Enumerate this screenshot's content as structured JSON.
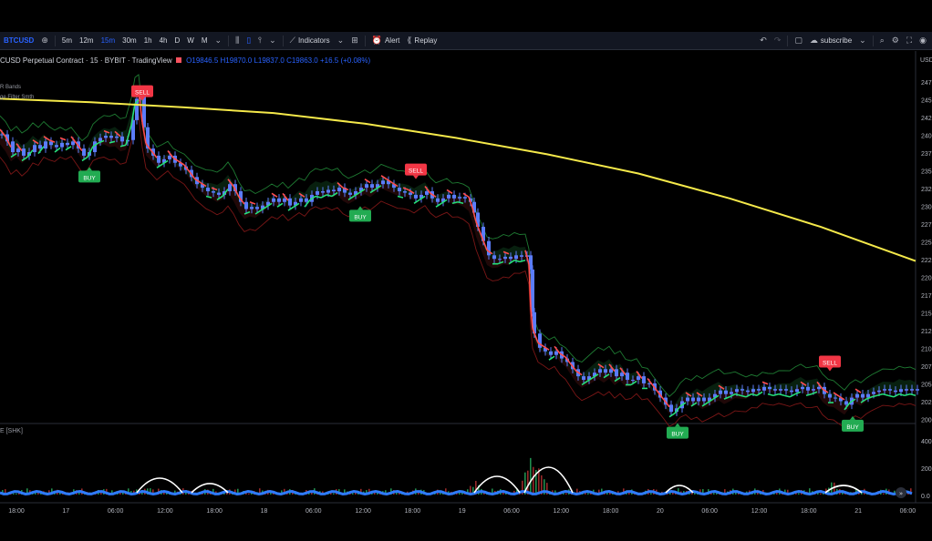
{
  "toolbar": {
    "symbol": "BTCUSD",
    "intervals": [
      "5m",
      "12m",
      "15m",
      "30m",
      "1h",
      "4h",
      "D",
      "W",
      "M"
    ],
    "active_interval": "15m",
    "indicators_label": "Indicators",
    "alert_label": "Alert",
    "replay_label": "Replay",
    "subscribe_label": "subscribe"
  },
  "legend": {
    "title": "CUSD Perpetual Contract · 15 · BYBIT · TradingView",
    "open": "O19846.5",
    "high": "H19870.0",
    "low": "L19837.0",
    "close": "C19863.0",
    "change": "+16.5 (+0.08%)"
  },
  "indicators": [
    "R Bands",
    "ge Filter Smth"
  ],
  "volume_label": "E [SHK]",
  "colors": {
    "yellow_line": "#f5e94a",
    "up_candle": "#5b7cfa",
    "trail_up": "#26e07a",
    "trail_down": "#ff4d4d",
    "band_up_fill": "#0e3a1c",
    "band_down_fill": "#3a0e0e",
    "vol_up": "#26a65b",
    "vol_down": "#b03030",
    "sell_badge": "#f23645",
    "buy_badge": "#22ab52"
  },
  "chart_data": {
    "type": "line",
    "title": "",
    "xlabel": "",
    "ylabel": "",
    "ylim": [
      20000,
      24800
    ],
    "x_tick_labels": [
      "18:00",
      "17",
      "06:00",
      "12:00",
      "18:00",
      "18",
      "06:00",
      "12:00",
      "18:00",
      "19",
      "06:00",
      "12:00",
      "18:00",
      "20",
      "06:00",
      "12:00",
      "18:00",
      "21",
      "06:00"
    ],
    "y_tick_labels": [
      "247",
      "245",
      "242",
      "240",
      "237",
      "235",
      "232",
      "230",
      "227",
      "225",
      "222",
      "220",
      "217",
      "215",
      "212",
      "210",
      "207",
      "205",
      "202",
      "200"
    ],
    "volume_tick_labels": [
      "400",
      "200",
      "0.0"
    ],
    "price_series": [
      [
        0,
        24000
      ],
      [
        6,
        23900
      ],
      [
        12,
        23750
      ],
      [
        18,
        23800
      ],
      [
        24,
        23700
      ],
      [
        30,
        23750
      ],
      [
        36,
        23850
      ],
      [
        42,
        23800
      ],
      [
        48,
        23900
      ],
      [
        54,
        23850
      ],
      [
        60,
        23820
      ],
      [
        66,
        23880
      ],
      [
        72,
        23850
      ],
      [
        78,
        23900
      ],
      [
        84,
        23800
      ],
      [
        90,
        23700
      ],
      [
        96,
        23750
      ],
      [
        102,
        23900
      ],
      [
        108,
        23950
      ],
      [
        114,
        23980
      ],
      [
        120,
        23950
      ],
      [
        126,
        23970
      ],
      [
        132,
        23900
      ],
      [
        138,
        23920
      ],
      [
        144,
        24200
      ],
      [
        148,
        24500
      ],
      [
        152,
        24550
      ],
      [
        156,
        24100
      ],
      [
        160,
        23800
      ],
      [
        166,
        23700
      ],
      [
        172,
        23600
      ],
      [
        178,
        23650
      ],
      [
        184,
        23700
      ],
      [
        190,
        23600
      ],
      [
        196,
        23550
      ],
      [
        202,
        23500
      ],
      [
        208,
        23400
      ],
      [
        214,
        23300
      ],
      [
        220,
        23250
      ],
      [
        226,
        23200
      ],
      [
        232,
        23180
      ],
      [
        238,
        23150
      ],
      [
        244,
        23200
      ],
      [
        250,
        23300
      ],
      [
        256,
        23200
      ],
      [
        262,
        23050
      ],
      [
        268,
        22950
      ],
      [
        274,
        22980
      ],
      [
        280,
        22950
      ],
      [
        286,
        23000
      ],
      [
        292,
        23050
      ],
      [
        298,
        23100
      ],
      [
        304,
        23050
      ],
      [
        310,
        23100
      ],
      [
        316,
        23000
      ],
      [
        322,
        23050
      ],
      [
        328,
        23100
      ],
      [
        334,
        23050
      ],
      [
        340,
        23150
      ],
      [
        346,
        23200
      ],
      [
        352,
        23180
      ],
      [
        358,
        23220
      ],
      [
        364,
        23200
      ],
      [
        370,
        23250
      ],
      [
        376,
        23180
      ],
      [
        382,
        23150
      ],
      [
        388,
        23200
      ],
      [
        394,
        23250
      ],
      [
        400,
        23300
      ],
      [
        406,
        23250
      ],
      [
        412,
        23300
      ],
      [
        418,
        23350
      ],
      [
        424,
        23300
      ],
      [
        430,
        23250
      ],
      [
        436,
        23200
      ],
      [
        442,
        23180
      ],
      [
        448,
        23150
      ],
      [
        454,
        23100
      ],
      [
        460,
        23150
      ],
      [
        466,
        23200
      ],
      [
        472,
        23100
      ],
      [
        478,
        23050
      ],
      [
        484,
        23100
      ],
      [
        490,
        23150
      ],
      [
        496,
        23100
      ],
      [
        502,
        23120
      ],
      [
        508,
        23100
      ],
      [
        514,
        23050
      ],
      [
        518,
        22900
      ],
      [
        522,
        22700
      ],
      [
        528,
        22500
      ],
      [
        534,
        22300
      ],
      [
        540,
        22250
      ],
      [
        546,
        22250
      ],
      [
        552,
        22280
      ],
      [
        558,
        22250
      ],
      [
        564,
        22300
      ],
      [
        570,
        22280
      ],
      [
        576,
        22300
      ],
      [
        580,
        22100
      ],
      [
        582,
        21500
      ],
      [
        584,
        21200
      ],
      [
        590,
        21000
      ],
      [
        596,
        20950
      ],
      [
        602,
        20900
      ],
      [
        608,
        20950
      ],
      [
        614,
        20850
      ],
      [
        620,
        20800
      ],
      [
        626,
        20700
      ],
      [
        632,
        20600
      ],
      [
        638,
        20550
      ],
      [
        644,
        20600
      ],
      [
        650,
        20650
      ],
      [
        656,
        20700
      ],
      [
        662,
        20650
      ],
      [
        668,
        20700
      ],
      [
        674,
        20600
      ],
      [
        680,
        20650
      ],
      [
        686,
        20550
      ],
      [
        692,
        20550
      ],
      [
        698,
        20600
      ],
      [
        704,
        20500
      ],
      [
        710,
        20500
      ],
      [
        716,
        20400
      ],
      [
        722,
        20300
      ],
      [
        728,
        20200
      ],
      [
        734,
        20100
      ],
      [
        740,
        20150
      ],
      [
        746,
        20250
      ],
      [
        752,
        20300
      ],
      [
        758,
        20250
      ],
      [
        764,
        20300
      ],
      [
        770,
        20250
      ],
      [
        776,
        20300
      ],
      [
        782,
        20350
      ],
      [
        788,
        20400
      ],
      [
        794,
        20350
      ],
      [
        800,
        20380
      ],
      [
        806,
        20420
      ],
      [
        812,
        20400
      ],
      [
        818,
        20380
      ],
      [
        824,
        20420
      ],
      [
        830,
        20400
      ],
      [
        836,
        20450
      ],
      [
        842,
        20420
      ],
      [
        848,
        20400
      ],
      [
        854,
        20420
      ],
      [
        860,
        20400
      ],
      [
        866,
        20380
      ],
      [
        872,
        20420
      ],
      [
        878,
        20450
      ],
      [
        884,
        20400
      ],
      [
        890,
        20420
      ],
      [
        896,
        20450
      ],
      [
        902,
        20350
      ],
      [
        908,
        20300
      ],
      [
        914,
        20300
      ],
      [
        920,
        20250
      ],
      [
        926,
        20200
      ],
      [
        932,
        20300
      ],
      [
        938,
        20350
      ],
      [
        944,
        20300
      ],
      [
        950,
        20350
      ],
      [
        956,
        20380
      ],
      [
        962,
        20400
      ],
      [
        968,
        20420
      ],
      [
        974,
        20400
      ],
      [
        980,
        20380
      ],
      [
        986,
        20420
      ],
      [
        992,
        20400
      ],
      [
        998,
        20420
      ],
      [
        1004,
        20400
      ]
    ],
    "moving_average": [
      [
        0,
        24500
      ],
      [
        100,
        24450
      ],
      [
        200,
        24380
      ],
      [
        300,
        24300
      ],
      [
        400,
        24150
      ],
      [
        500,
        23950
      ],
      [
        600,
        23720
      ],
      [
        700,
        23450
      ],
      [
        800,
        23100
      ],
      [
        900,
        22700
      ],
      [
        1004,
        22220
      ]
    ],
    "signals": [
      {
        "label": "SELL",
        "x": 156,
        "y": 24600
      },
      {
        "label": "BUY",
        "x": 98,
        "y": 23400
      },
      {
        "label": "SELL",
        "x": 456,
        "y": 23500
      },
      {
        "label": "BUY",
        "x": 395,
        "y": 22850
      },
      {
        "label": "SELL",
        "x": 910,
        "y": 20800
      },
      {
        "label": "BUY",
        "x": 743,
        "y": 19800
      },
      {
        "label": "BUY",
        "x": 935,
        "y": 19900
      }
    ],
    "volume_highlights": [
      {
        "x": 160,
        "v": 80
      },
      {
        "x": 521,
        "v": 120
      },
      {
        "x": 582,
        "v": 380
      },
      {
        "x": 586,
        "v": 320
      },
      {
        "x": 590,
        "v": 250
      },
      {
        "x": 912,
        "v": 110
      }
    ]
  }
}
